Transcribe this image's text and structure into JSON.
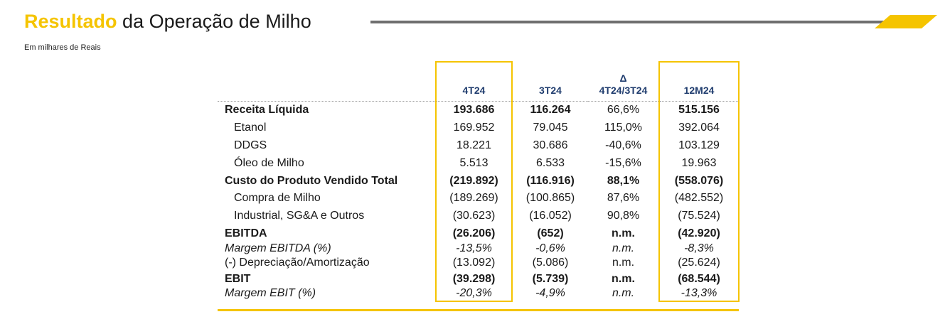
{
  "header": {
    "title_highlight": "Resultado",
    "title_rest": "da Operação de Milho",
    "subtitle": "Em milhares de Reais"
  },
  "colors": {
    "accent": "#f5c400",
    "header_text": "#1f3c6e",
    "rule": "#6f6f6f"
  },
  "table": {
    "columns": [
      "",
      "4T24",
      "3T24",
      "Δ",
      "4T24/3T24",
      "12M24"
    ],
    "col_delta_top": "Δ",
    "col_delta_bottom": "4T24/3T24",
    "rows": [
      {
        "label": "Receita Líquida",
        "v4t24": "193.686",
        "v3t24": "116.264",
        "delta": "66,6%",
        "v12m24": "515.156"
      },
      {
        "label": "Etanol",
        "v4t24": "169.952",
        "v3t24": "79.045",
        "delta": "115,0%",
        "v12m24": "392.064"
      },
      {
        "label": "DDGS",
        "v4t24": "18.221",
        "v3t24": "30.686",
        "delta": "-40,6%",
        "v12m24": "103.129"
      },
      {
        "label": "Óleo de Milho",
        "v4t24": "5.513",
        "v3t24": "6.533",
        "delta": "-15,6%",
        "v12m24": "19.963"
      },
      {
        "label": "Custo do Produto Vendido Total",
        "v4t24": "(219.892)",
        "v3t24": "(116.916)",
        "delta": "88,1%",
        "v12m24": "(558.076)"
      },
      {
        "label": "Compra de Milho",
        "v4t24": "(189.269)",
        "v3t24": "(100.865)",
        "delta": "87,6%",
        "v12m24": "(482.552)"
      },
      {
        "label": "Industrial, SG&A e Outros",
        "v4t24": "(30.623)",
        "v3t24": "(16.052)",
        "delta": "90,8%",
        "v12m24": "(75.524)"
      },
      {
        "label": "EBITDA",
        "v4t24": "(26.206)",
        "v3t24": "(652)",
        "delta": "n.m.",
        "v12m24": "(42.920)"
      },
      {
        "label": "Margem EBITDA (%)",
        "v4t24": "-13,5%",
        "v3t24": "-0,6%",
        "delta": "n.m.",
        "v12m24": "-8,3%"
      },
      {
        "label": "(-) Depreciação/Amortização",
        "v4t24": "(13.092)",
        "v3t24": "(5.086)",
        "delta": "n.m.",
        "v12m24": "(25.624)"
      },
      {
        "label": "EBIT",
        "v4t24": "(39.298)",
        "v3t24": "(5.739)",
        "delta": "n.m.",
        "v12m24": "(68.544)"
      },
      {
        "label": "Margem EBIT (%)",
        "v4t24": "-20,3%",
        "v3t24": "-4,9%",
        "delta": "n.m.",
        "v12m24": "-13,3%"
      }
    ]
  }
}
